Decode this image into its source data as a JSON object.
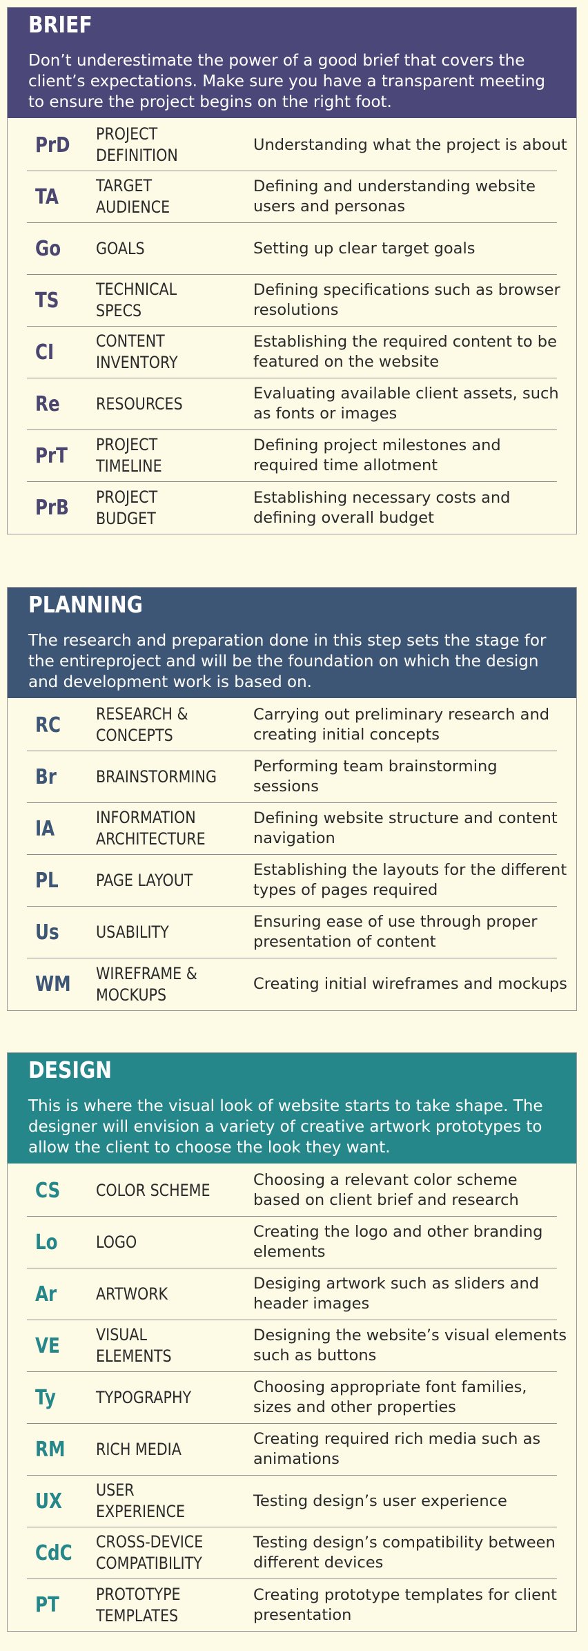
{
  "colors": {
    "background": "#fdfbe6",
    "brief": "#4b4778",
    "planning": "#3e5675",
    "design": "#26878a"
  },
  "sections": [
    {
      "title": "BRIEF",
      "description": "Don’t underestimate the power of a good brief that covers the client’s expectations. Make sure you have a transparent meeting to ensure the project begins on the right foot.",
      "rows": [
        {
          "abbr": "PrD",
          "name": "PROJECT\nDEFINITION",
          "desc": "Understanding what the project is about"
        },
        {
          "abbr": "TA",
          "name": "TARGET\nAUDIENCE",
          "desc": "Defining and understanding website users and personas"
        },
        {
          "abbr": "Go",
          "name": "GOALS",
          "desc": "Setting up clear target goals"
        },
        {
          "abbr": "TS",
          "name": "TECHNICAL\nSPECS",
          "desc": "Defining specifications such as browser resolutions"
        },
        {
          "abbr": "CI",
          "name": "CONTENT\nINVENTORY",
          "desc": "Establishing the required content to be featured on the website"
        },
        {
          "abbr": "Re",
          "name": "RESOURCES",
          "desc": "Evaluating available client assets, such as fonts or images"
        },
        {
          "abbr": "PrT",
          "name": "PROJECT\nTIMELINE",
          "desc": "Defining project milestones and required time allotment"
        },
        {
          "abbr": "PrB",
          "name": "PROJECT BUDGET",
          "desc": "Establishing necessary costs and defining overall budget"
        }
      ]
    },
    {
      "title": "PLANNING",
      "description": "The research and preparation done in this step sets the stage for the entireproject and will be the foundation on which the design and development work is based on.",
      "rows": [
        {
          "abbr": "RC",
          "name": "RESEARCH &\nCONCEPTS",
          "desc": "Carrying out preliminary research and creating initial concepts"
        },
        {
          "abbr": "Br",
          "name": "BRAINSTORMING",
          "desc": "Performing team brainstorming sessions"
        },
        {
          "abbr": "IA",
          "name": "INFORMATION\nARCHITECTURE",
          "desc": "Defining website structure and content navigation"
        },
        {
          "abbr": "PL",
          "name": "PAGE LAYOUT",
          "desc": "Establishing the layouts for the different types of pages required"
        },
        {
          "abbr": "Us",
          "name": "USABILITY",
          "desc": "Ensuring ease of use through proper presentation of content"
        },
        {
          "abbr": "WM",
          "name": "WIREFRAME &\nMOCKUPS",
          "desc": "Creating initial wireframes and mockups"
        }
      ]
    },
    {
      "title": "DESIGN",
      "description": "This is where the visual look of website starts to take shape. The designer will envision a variety of creative artwork prototypes to allow the client to choose the look they want.",
      "rows": [
        {
          "abbr": "CS",
          "name": "COLOR SCHEME",
          "desc": "Choosing a relevant color scheme based on client brief and research"
        },
        {
          "abbr": "Lo",
          "name": "LOGO",
          "desc": "Creating the logo and other branding elements"
        },
        {
          "abbr": "Ar",
          "name": "ARTWORK",
          "desc": "Desiging artwork such as sliders and header images"
        },
        {
          "abbr": "VE",
          "name": "VISUAL\nELEMENTS",
          "desc": "Designing the website’s visual elements such as buttons"
        },
        {
          "abbr": "Ty",
          "name": "TYPOGRAPHY",
          "desc": "Choosing appropriate font families, sizes and other properties"
        },
        {
          "abbr": "RM",
          "name": "RICH MEDIA",
          "desc": "Creating required rich media such as animations"
        },
        {
          "abbr": "UX",
          "name": "USER EXPERIENCE",
          "desc": "Testing design’s user experience"
        },
        {
          "abbr": "CdC",
          "name": "CROSS-DEVICE\nCOMPATIBILITY",
          "desc": "Testing design’s compatibility between different devices"
        },
        {
          "abbr": "PT",
          "name": "PROTOTYPE\nTEMPLATES",
          "desc": "Creating prototype templates for client presentation"
        }
      ]
    }
  ]
}
